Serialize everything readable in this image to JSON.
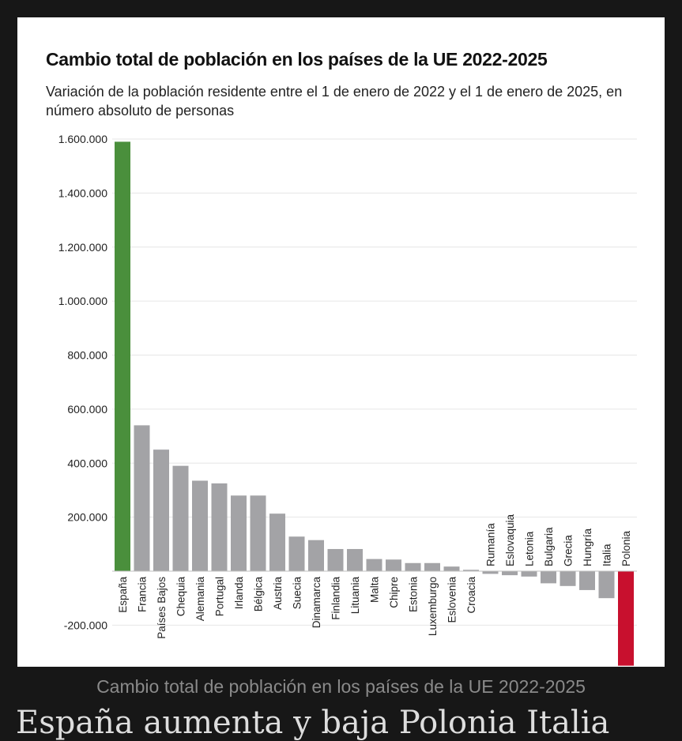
{
  "caption": "Cambio total de población en los países de la UE 2022-2025",
  "below_text": "España aumenta y baja Polonia Italia",
  "colors": {
    "background": "#171717",
    "highlight_positive": "#4a8f3c",
    "highlight_negative": "#c8102e",
    "default_bar": "#a3a3a6",
    "grid": "#e6e6e6"
  },
  "chart_data": {
    "type": "bar",
    "title": "Cambio total de población en los países de la UE 2022-2025",
    "subtitle": "Variación de la población residente entre el 1 de enero de 2022 y el 1 de enero de 2025, en número absoluto de personas",
    "xlabel": "",
    "ylabel": "",
    "ylim": [
      -350000,
      1600000
    ],
    "yticks": [
      -200000,
      200000,
      400000,
      600000,
      800000,
      1000000,
      1200000,
      1400000,
      1600000
    ],
    "ytick_labels": [
      "-200.000",
      "200.000",
      "400.000",
      "600.000",
      "800.000",
      "1.000.000",
      "1.200.000",
      "1.400.000",
      "1.600.000"
    ],
    "grid": true,
    "legend": "none",
    "categories": [
      "España",
      "Francia",
      "Países Bajos",
      "Chequia",
      "Alemania",
      "Portugal",
      "Irlanda",
      "Bélgica",
      "Austria",
      "Suecia",
      "Dinamarca",
      "Finlandia",
      "Lituania",
      "Malta",
      "Chipre",
      "Estonia",
      "Luxemburgo",
      "Eslovenia",
      "Croacia",
      "Rumanía",
      "Eslovaquia",
      "Letonia",
      "Bulgaria",
      "Grecia",
      "Hungría",
      "Italia",
      "Polonia"
    ],
    "values": [
      1590000,
      540000,
      450000,
      390000,
      335000,
      325000,
      280000,
      280000,
      213000,
      128000,
      115000,
      82000,
      82000,
      45000,
      43000,
      30000,
      30000,
      17000,
      5000,
      -10000,
      -15000,
      -20000,
      -45000,
      -55000,
      -70000,
      -100000,
      -350000
    ],
    "bar_colors": [
      "#4a8f3c",
      "#a3a3a6",
      "#a3a3a6",
      "#a3a3a6",
      "#a3a3a6",
      "#a3a3a6",
      "#a3a3a6",
      "#a3a3a6",
      "#a3a3a6",
      "#a3a3a6",
      "#a3a3a6",
      "#a3a3a6",
      "#a3a3a6",
      "#a3a3a6",
      "#a3a3a6",
      "#a3a3a6",
      "#a3a3a6",
      "#a3a3a6",
      "#a3a3a6",
      "#a3a3a6",
      "#a3a3a6",
      "#a3a3a6",
      "#a3a3a6",
      "#a3a3a6",
      "#a3a3a6",
      "#a3a3a6",
      "#c8102e"
    ]
  }
}
